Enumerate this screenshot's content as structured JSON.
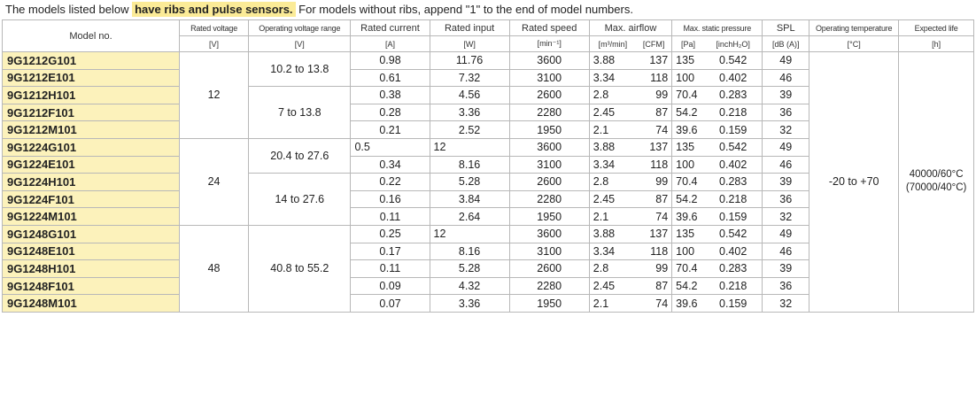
{
  "intro": {
    "lead": "The models listed below ",
    "highlight": "have ribs and pulse sensors.",
    "tail": " For models without ribs, append \"1\" to the end of model numbers."
  },
  "headers": {
    "model": "Model no.",
    "rated_voltage": "Rated voltage",
    "operating_voltage_range": "Operating voltage range",
    "rated_current": "Rated current",
    "rated_input": "Rated input",
    "rated_speed": "Rated speed",
    "max_airflow": "Max. airflow",
    "max_static_pressure": "Max. static pressure",
    "spl": "SPL",
    "operating_temperature": "Operating temperature",
    "expected_life": "Expected life"
  },
  "units": {
    "rated_voltage": "[V]",
    "operating_voltage_range": "[V]",
    "rated_current": "[A]",
    "rated_input": "[W]",
    "rated_speed": "[min⁻¹]",
    "airflow_m3": "[m³/min]",
    "airflow_cfm": "[CFM]",
    "pressure_pa": "[Pa]",
    "pressure_inch": "[inchH₂O]",
    "spl": "[dB (A)]",
    "operating_temperature": "[°C]",
    "expected_life": "[h]"
  },
  "groups": {
    "v12": "12",
    "v24": "24",
    "v48": "48",
    "range_12a": "10.2 to 13.8",
    "range_12b": "7 to 13.8",
    "range_24a": "20.4 to 27.6",
    "range_24b": "14 to 27.6",
    "range_48": "40.8 to 55.2",
    "temperature": "-20 to +70",
    "life_1": "40000/60°C",
    "life_2": "(70000/40°C)"
  },
  "rows": [
    {
      "model": "9G1212G101",
      "current": "0.98",
      "input": "11.76",
      "speed": "3600",
      "m3": "3.88",
      "cfm": "137",
      "pa": "135",
      "inch": "0.542",
      "spl": "49"
    },
    {
      "model": "9G1212E101",
      "current": "0.61",
      "input": "7.32",
      "speed": "3100",
      "m3": "3.34",
      "cfm": "118",
      "pa": "100",
      "inch": "0.402",
      "spl": "46"
    },
    {
      "model": "9G1212H101",
      "current": "0.38",
      "input": "4.56",
      "speed": "2600",
      "m3": "2.8",
      "cfm": "99",
      "pa": "70.4",
      "inch": "0.283",
      "spl": "39"
    },
    {
      "model": "9G1212F101",
      "current": "0.28",
      "input": "3.36",
      "speed": "2280",
      "m3": "2.45",
      "cfm": "87",
      "pa": "54.2",
      "inch": "0.218",
      "spl": "36"
    },
    {
      "model": "9G1212M101",
      "current": "0.21",
      "input": "2.52",
      "speed": "1950",
      "m3": "2.1",
      "cfm": "74",
      "pa": "39.6",
      "inch": "0.159",
      "spl": "32"
    },
    {
      "model": "9G1224G101",
      "current": "0.5",
      "input": "12",
      "speed": "3600",
      "m3": "3.88",
      "cfm": "137",
      "pa": "135",
      "inch": "0.542",
      "spl": "49"
    },
    {
      "model": "9G1224E101",
      "current": "0.34",
      "input": "8.16",
      "speed": "3100",
      "m3": "3.34",
      "cfm": "118",
      "pa": "100",
      "inch": "0.402",
      "spl": "46"
    },
    {
      "model": "9G1224H101",
      "current": "0.22",
      "input": "5.28",
      "speed": "2600",
      "m3": "2.8",
      "cfm": "99",
      "pa": "70.4",
      "inch": "0.283",
      "spl": "39"
    },
    {
      "model": "9G1224F101",
      "current": "0.16",
      "input": "3.84",
      "speed": "2280",
      "m3": "2.45",
      "cfm": "87",
      "pa": "54.2",
      "inch": "0.218",
      "spl": "36"
    },
    {
      "model": "9G1224M101",
      "current": "0.11",
      "input": "2.64",
      "speed": "1950",
      "m3": "2.1",
      "cfm": "74",
      "pa": "39.6",
      "inch": "0.159",
      "spl": "32"
    },
    {
      "model": "9G1248G101",
      "current": "0.25",
      "input": "12",
      "speed": "3600",
      "m3": "3.88",
      "cfm": "137",
      "pa": "135",
      "inch": "0.542",
      "spl": "49"
    },
    {
      "model": "9G1248E101",
      "current": "0.17",
      "input": "8.16",
      "speed": "3100",
      "m3": "3.34",
      "cfm": "118",
      "pa": "100",
      "inch": "0.402",
      "spl": "46"
    },
    {
      "model": "9G1248H101",
      "current": "0.11",
      "input": "5.28",
      "speed": "2600",
      "m3": "2.8",
      "cfm": "99",
      "pa": "70.4",
      "inch": "0.283",
      "spl": "39"
    },
    {
      "model": "9G1248F101",
      "current": "0.09",
      "input": "4.32",
      "speed": "2280",
      "m3": "2.45",
      "cfm": "87",
      "pa": "54.2",
      "inch": "0.218",
      "spl": "36"
    },
    {
      "model": "9G1248M101",
      "current": "0.07",
      "input": "3.36",
      "speed": "1950",
      "m3": "2.1",
      "cfm": "74",
      "pa": "39.6",
      "inch": "0.159",
      "spl": "32"
    }
  ]
}
